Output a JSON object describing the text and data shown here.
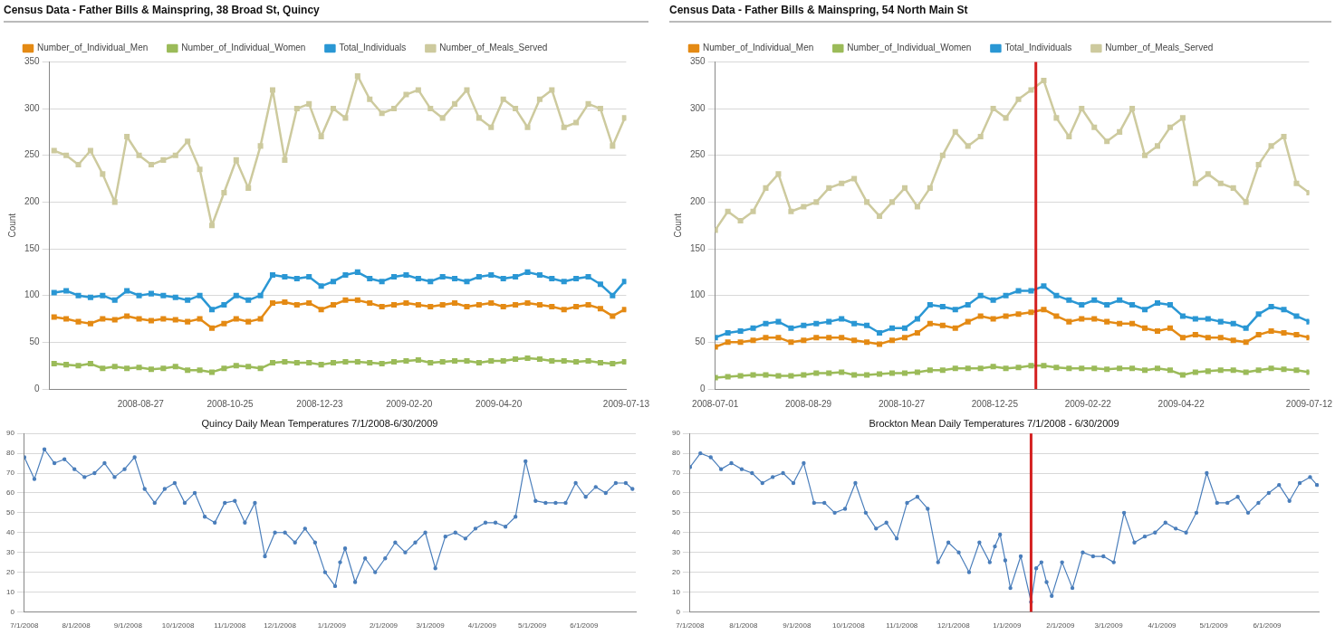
{
  "chart_data": [
    {
      "type": "line",
      "title": "Census Data - Father Bills & Mainspring, 38 Broad St, Quincy",
      "ylabel": "Count",
      "legend": "top",
      "grid": "y",
      "marker": "square",
      "x": [
        "2008-07-01",
        "2008-07-09",
        "2008-07-17",
        "2008-07-25",
        "2008-08-02",
        "2008-08-10",
        "2008-08-18",
        "2008-08-26",
        "2008-09-03",
        "2008-09-11",
        "2008-09-19",
        "2008-09-27",
        "2008-10-05",
        "2008-10-13",
        "2008-10-21",
        "2008-10-29",
        "2008-11-06",
        "2008-11-14",
        "2008-11-22",
        "2008-11-30",
        "2008-12-08",
        "2008-12-16",
        "2008-12-24",
        "2009-01-01",
        "2009-01-09",
        "2009-01-17",
        "2009-01-25",
        "2009-02-02",
        "2009-02-10",
        "2009-02-18",
        "2009-02-26",
        "2009-03-06",
        "2009-03-14",
        "2009-03-22",
        "2009-03-30",
        "2009-04-07",
        "2009-04-15",
        "2009-04-23",
        "2009-05-01",
        "2009-05-09",
        "2009-05-17",
        "2009-05-25",
        "2009-06-02",
        "2009-06-10",
        "2009-06-18",
        "2009-06-26",
        "2009-07-04",
        "2009-07-12"
      ],
      "xlim": [
        "2008-06-28",
        "2009-07-13"
      ],
      "xticks": [
        "2008-08-27",
        "2008-10-25",
        "2008-12-23",
        "2009-02-20",
        "2009-04-20",
        "2009-07-13"
      ],
      "ylim": [
        0,
        350
      ],
      "yticks": [
        0,
        50,
        100,
        150,
        200,
        250,
        300,
        350
      ],
      "series": [
        {
          "name": "Number_of_Individual_Men",
          "color": "#e48a14",
          "values": [
            77,
            75,
            72,
            70,
            75,
            74,
            78,
            75,
            73,
            75,
            74,
            72,
            75,
            65,
            70,
            75,
            72,
            75,
            92,
            93,
            90,
            92,
            85,
            90,
            95,
            95,
            92,
            88,
            90,
            92,
            90,
            88,
            90,
            92,
            88,
            90,
            92,
            88,
            90,
            92,
            90,
            88,
            85,
            88,
            90,
            86,
            78,
            85
          ]
        },
        {
          "name": "Number_of_Individual_Women",
          "color": "#9bbb59",
          "values": [
            27,
            26,
            25,
            27,
            22,
            24,
            22,
            23,
            21,
            22,
            24,
            20,
            20,
            18,
            22,
            25,
            24,
            22,
            28,
            29,
            28,
            28,
            26,
            28,
            29,
            29,
            28,
            27,
            29,
            30,
            31,
            28,
            29,
            30,
            30,
            28,
            30,
            30,
            32,
            33,
            32,
            30,
            30,
            29,
            30,
            28,
            27,
            29
          ]
        },
        {
          "name": "Total_Individuals",
          "color": "#2a97d4",
          "values": [
            103,
            105,
            100,
            98,
            100,
            95,
            105,
            100,
            102,
            100,
            98,
            95,
            100,
            85,
            90,
            100,
            95,
            100,
            122,
            120,
            118,
            120,
            110,
            115,
            122,
            125,
            118,
            115,
            120,
            122,
            118,
            115,
            120,
            118,
            115,
            120,
            122,
            118,
            120,
            125,
            122,
            118,
            115,
            118,
            120,
            112,
            100,
            115
          ]
        },
        {
          "name": "Number_of_Meals_Served",
          "color": "#cdca9e",
          "values": [
            255,
            250,
            240,
            255,
            230,
            200,
            270,
            250,
            240,
            245,
            250,
            265,
            235,
            175,
            210,
            245,
            215,
            260,
            320,
            245,
            300,
            305,
            270,
            300,
            290,
            335,
            310,
            295,
            300,
            315,
            320,
            300,
            290,
            305,
            320,
            290,
            280,
            310,
            300,
            280,
            310,
            320,
            280,
            285,
            305,
            300,
            260,
            290
          ]
        }
      ]
    },
    {
      "type": "line",
      "title": "Census Data - Father Bills & Mainspring, 54 North Main St",
      "ylabel": "Count",
      "legend": "top",
      "grid": "y",
      "marker": "square",
      "x": [
        "2008-07-01",
        "2008-07-09",
        "2008-07-17",
        "2008-07-25",
        "2008-08-02",
        "2008-08-10",
        "2008-08-18",
        "2008-08-26",
        "2008-09-03",
        "2008-09-11",
        "2008-09-19",
        "2008-09-27",
        "2008-10-05",
        "2008-10-13",
        "2008-10-21",
        "2008-10-29",
        "2008-11-06",
        "2008-11-14",
        "2008-11-22",
        "2008-11-30",
        "2008-12-08",
        "2008-12-16",
        "2008-12-24",
        "2009-01-01",
        "2009-01-09",
        "2009-01-17",
        "2009-01-25",
        "2009-02-02",
        "2009-02-10",
        "2009-02-18",
        "2009-02-26",
        "2009-03-06",
        "2009-03-14",
        "2009-03-22",
        "2009-03-30",
        "2009-04-07",
        "2009-04-15",
        "2009-04-23",
        "2009-05-01",
        "2009-05-09",
        "2009-05-17",
        "2009-05-25",
        "2009-06-02",
        "2009-06-10",
        "2009-06-18",
        "2009-06-26",
        "2009-07-04",
        "2009-07-12"
      ],
      "xlim": [
        "2008-07-01",
        "2009-07-12"
      ],
      "xticks": [
        "2008-07-01",
        "2008-08-29",
        "2008-10-27",
        "2008-12-25",
        "2009-02-22",
        "2009-04-22",
        "2009-07-12"
      ],
      "ylim": [
        0,
        350
      ],
      "yticks": [
        0,
        50,
        100,
        150,
        200,
        250,
        300,
        350
      ],
      "ref_lines": [
        {
          "axis": "x",
          "value": "2009-01-20",
          "color": "#d42020"
        }
      ],
      "series": [
        {
          "name": "Number_of_Individual_Men",
          "color": "#e48a14",
          "values": [
            45,
            50,
            50,
            52,
            55,
            55,
            50,
            52,
            55,
            55,
            55,
            52,
            50,
            48,
            52,
            55,
            60,
            70,
            68,
            65,
            72,
            78,
            75,
            78,
            80,
            82,
            85,
            78,
            72,
            75,
            75,
            72,
            70,
            70,
            65,
            62,
            65,
            55,
            58,
            55,
            55,
            52,
            50,
            58,
            62,
            60,
            58,
            55
          ]
        },
        {
          "name": "Number_of_Individual_Women",
          "color": "#9bbb59",
          "values": [
            12,
            13,
            14,
            15,
            15,
            14,
            14,
            15,
            17,
            17,
            18,
            15,
            15,
            16,
            17,
            17,
            18,
            20,
            20,
            22,
            22,
            22,
            24,
            22,
            23,
            25,
            25,
            23,
            22,
            22,
            22,
            21,
            22,
            22,
            20,
            22,
            20,
            15,
            18,
            19,
            20,
            20,
            18,
            20,
            22,
            21,
            20,
            18
          ]
        },
        {
          "name": "Total_Individuals",
          "color": "#2a97d4",
          "values": [
            55,
            60,
            62,
            65,
            70,
            72,
            65,
            68,
            70,
            72,
            75,
            70,
            68,
            60,
            65,
            65,
            75,
            90,
            88,
            85,
            90,
            100,
            95,
            100,
            105,
            105,
            110,
            100,
            95,
            90,
            95,
            90,
            95,
            90,
            85,
            92,
            90,
            78,
            75,
            75,
            72,
            70,
            65,
            80,
            88,
            85,
            78,
            72
          ]
        },
        {
          "name": "Number_of_Meals_Served",
          "color": "#cdca9e",
          "values": [
            170,
            190,
            180,
            190,
            215,
            230,
            190,
            195,
            200,
            215,
            220,
            225,
            200,
            185,
            200,
            215,
            195,
            215,
            250,
            275,
            260,
            270,
            300,
            290,
            310,
            320,
            330,
            290,
            270,
            300,
            280,
            265,
            275,
            300,
            250,
            260,
            280,
            290,
            220,
            230,
            220,
            215,
            200,
            240,
            260,
            270,
            220,
            210
          ]
        }
      ]
    },
    {
      "type": "line",
      "title": "Quincy Daily Mean Temperatures 7/1/2008-6/30/2009",
      "grid": "y",
      "marker": "circle",
      "x": [
        "2008-07-01",
        "2008-07-07",
        "2008-07-13",
        "2008-07-19",
        "2008-07-25",
        "2008-07-31",
        "2008-08-06",
        "2008-08-12",
        "2008-08-18",
        "2008-08-24",
        "2008-08-30",
        "2008-09-05",
        "2008-09-11",
        "2008-09-17",
        "2008-09-23",
        "2008-09-29",
        "2008-10-05",
        "2008-10-11",
        "2008-10-17",
        "2008-10-23",
        "2008-10-29",
        "2008-11-04",
        "2008-11-10",
        "2008-11-16",
        "2008-11-22",
        "2008-11-28",
        "2008-12-04",
        "2008-12-10",
        "2008-12-16",
        "2008-12-22",
        "2008-12-28",
        "2009-01-03",
        "2009-01-06",
        "2009-01-09",
        "2009-01-15",
        "2009-01-21",
        "2009-01-27",
        "2009-02-02",
        "2009-02-08",
        "2009-02-14",
        "2009-02-20",
        "2009-02-26",
        "2009-03-04",
        "2009-03-10",
        "2009-03-16",
        "2009-03-22",
        "2009-03-28",
        "2009-04-03",
        "2009-04-09",
        "2009-04-15",
        "2009-04-21",
        "2009-04-27",
        "2009-05-03",
        "2009-05-09",
        "2009-05-15",
        "2009-05-21",
        "2009-05-27",
        "2009-06-02",
        "2009-06-08",
        "2009-06-14",
        "2009-06-20",
        "2009-06-26",
        "2009-06-30"
      ],
      "xlim": [
        "2008-07-01",
        "2009-07-02"
      ],
      "xticks": [
        {
          "value": "2008-07-01",
          "label": "7/1/2008"
        },
        {
          "value": "2008-08-01",
          "label": "8/1/2008"
        },
        {
          "value": "2008-09-01",
          "label": "9/1/2008"
        },
        {
          "value": "2008-10-01",
          "label": "10/1/2008"
        },
        {
          "value": "2008-11-01",
          "label": "11/1/2008"
        },
        {
          "value": "2008-12-01",
          "label": "12/1/2008"
        },
        {
          "value": "2009-01-01",
          "label": "1/1/2009"
        },
        {
          "value": "2009-02-01",
          "label": "2/1/2009"
        },
        {
          "value": "2009-03-01",
          "label": "3/1/2009"
        },
        {
          "value": "2009-04-01",
          "label": "4/1/2009"
        },
        {
          "value": "2009-05-01",
          "label": "5/1/2009"
        },
        {
          "value": "2009-06-01",
          "label": "6/1/2009"
        }
      ],
      "ylim": [
        0,
        90
      ],
      "yticks": [
        0,
        10,
        20,
        30,
        40,
        50,
        60,
        70,
        80,
        90
      ],
      "series": [
        {
          "color": "#4a7ebb",
          "values": [
            78,
            67,
            82,
            75,
            77,
            72,
            68,
            70,
            75,
            68,
            72,
            78,
            62,
            55,
            62,
            65,
            55,
            60,
            48,
            45,
            55,
            56,
            45,
            55,
            28,
            40,
            40,
            35,
            42,
            35,
            20,
            13,
            25,
            32,
            15,
            27,
            20,
            27,
            35,
            30,
            35,
            40,
            22,
            38,
            40,
            37,
            42,
            45,
            45,
            43,
            48,
            76,
            56,
            55,
            55,
            55,
            65,
            58,
            63,
            60,
            65,
            65,
            62
          ]
        }
      ]
    },
    {
      "type": "line",
      "title": "Brockton Mean Daily Temperatures 7/1/2008 - 6/30/2009",
      "grid": "y",
      "marker": "circle",
      "x": [
        "2008-07-01",
        "2008-07-07",
        "2008-07-13",
        "2008-07-19",
        "2008-07-25",
        "2008-07-31",
        "2008-08-06",
        "2008-08-12",
        "2008-08-18",
        "2008-08-24",
        "2008-08-30",
        "2008-09-05",
        "2008-09-11",
        "2008-09-17",
        "2008-09-23",
        "2008-09-29",
        "2008-10-05",
        "2008-10-11",
        "2008-10-17",
        "2008-10-23",
        "2008-10-29",
        "2008-11-04",
        "2008-11-10",
        "2008-11-16",
        "2008-11-22",
        "2008-11-28",
        "2008-12-04",
        "2008-12-10",
        "2008-12-16",
        "2008-12-22",
        "2008-12-25",
        "2008-12-28",
        "2008-12-31",
        "2009-01-03",
        "2009-01-09",
        "2009-01-15",
        "2009-01-18",
        "2009-01-21",
        "2009-01-24",
        "2009-01-27",
        "2009-02-02",
        "2009-02-08",
        "2009-02-14",
        "2009-02-20",
        "2009-02-26",
        "2009-03-04",
        "2009-03-10",
        "2009-03-16",
        "2009-03-22",
        "2009-03-28",
        "2009-04-03",
        "2009-04-09",
        "2009-04-15",
        "2009-04-21",
        "2009-04-27",
        "2009-05-03",
        "2009-05-09",
        "2009-05-15",
        "2009-05-21",
        "2009-05-27",
        "2009-06-02",
        "2009-06-08",
        "2009-06-14",
        "2009-06-20",
        "2009-06-26",
        "2009-06-30"
      ],
      "xlim": [
        "2008-07-01",
        "2009-07-01"
      ],
      "xticks": [
        {
          "value": "2008-07-01",
          "label": "7/1/2008"
        },
        {
          "value": "2008-08-01",
          "label": "8/1/2008"
        },
        {
          "value": "2008-09-01",
          "label": "9/1/2008"
        },
        {
          "value": "2008-10-01",
          "label": "10/1/2008"
        },
        {
          "value": "2008-11-01",
          "label": "11/1/2008"
        },
        {
          "value": "2008-12-01",
          "label": "12/1/2008"
        },
        {
          "value": "2009-01-01",
          "label": "1/1/2009"
        },
        {
          "value": "2009-02-01",
          "label": "2/1/2009"
        },
        {
          "value": "2009-03-01",
          "label": "3/1/2009"
        },
        {
          "value": "2009-04-01",
          "label": "4/1/2009"
        },
        {
          "value": "2009-05-01",
          "label": "5/1/2009"
        },
        {
          "value": "2009-06-01",
          "label": "6/1/2009"
        }
      ],
      "ylim": [
        0,
        90
      ],
      "yticks": [
        0,
        10,
        20,
        30,
        40,
        50,
        60,
        70,
        80,
        90
      ],
      "ref_lines": [
        {
          "axis": "x",
          "value": "2009-01-15",
          "color": "#d42020"
        }
      ],
      "series": [
        {
          "color": "#4a7ebb",
          "values": [
            73,
            80,
            78,
            72,
            75,
            72,
            70,
            65,
            68,
            70,
            65,
            75,
            55,
            55,
            50,
            52,
            65,
            50,
            42,
            45,
            37,
            55,
            58,
            52,
            25,
            35,
            30,
            20,
            35,
            25,
            33,
            39,
            26,
            12,
            28,
            5,
            22,
            25,
            15,
            8,
            25,
            12,
            30,
            28,
            28,
            25,
            50,
            35,
            38,
            40,
            45,
            42,
            40,
            50,
            70,
            55,
            55,
            58,
            50,
            55,
            60,
            64,
            56,
            65,
            68,
            64
          ]
        }
      ]
    }
  ]
}
